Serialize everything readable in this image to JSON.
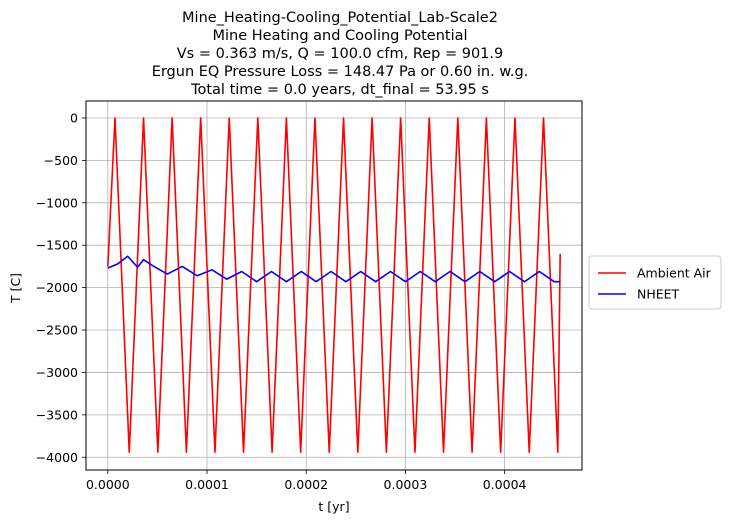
{
  "chart_data": {
    "type": "line",
    "title_lines": [
      "Mine_Heating-Cooling_Potential_Lab-Scale2",
      "Mine Heating and Cooling Potential",
      "Vs = 0.363 m/s, Q = 100.0 cfm, Rep = 901.9",
      "Ergun EQ Pressure Loss = 148.47 Pa or 0.60 in. w.g.",
      "Total time = 0.0 years, dt_final = 53.95 s"
    ],
    "xlabel": "t [yr]",
    "ylabel": "T [C]",
    "xlim": [
      -2.2e-05,
      0.000478
    ],
    "ylim": [
      -4150,
      200
    ],
    "xticks": [
      0.0,
      0.0001,
      0.0002,
      0.0003,
      0.0004
    ],
    "xtick_labels": [
      "0.0000",
      "0.0001",
      "0.0002",
      "0.0003",
      "0.0004"
    ],
    "yticks": [
      0,
      -500,
      -1000,
      -1500,
      -2000,
      -2500,
      -3000,
      -3500,
      -4000
    ],
    "ytick_labels": [
      "0",
      "−500",
      "−1000",
      "−1500",
      "−2000",
      "−2500",
      "−3000",
      "−3500",
      "−4000"
    ],
    "grid": true,
    "legend_position": "outside-right",
    "series": [
      {
        "name": "Ambient Air",
        "color": "#ff0000",
        "x": [
          0.0,
          7.2e-06,
          2.16e-05,
          3.6e-05,
          5.04e-05,
          6.48e-05,
          7.92e-05,
          9.36e-05,
          0.000108,
          0.0001224,
          0.0001368,
          0.0001512,
          0.0001656,
          0.00018,
          0.0001944,
          0.0002088,
          0.0002232,
          0.0002376,
          0.000252,
          0.0002664,
          0.0002808,
          0.0002952,
          0.0003096,
          0.000324,
          0.0003384,
          0.0003528,
          0.0003672,
          0.0003816,
          0.000396,
          0.0004104,
          0.0004248,
          0.0004392,
          0.0004536,
          0.000456
        ],
        "y": [
          -1750,
          0,
          -3940,
          0,
          -3940,
          0,
          -3940,
          0,
          -3940,
          0,
          -3940,
          0,
          -3940,
          0,
          -3940,
          0,
          -3940,
          0,
          -3940,
          0,
          -3940,
          0,
          -3940,
          0,
          -3940,
          0,
          -3940,
          0,
          -3940,
          0,
          -3940,
          0,
          -3940,
          -1600
        ]
      },
      {
        "name": "NHEET",
        "color": "#0000ff",
        "x": [
          0.0,
          1e-05,
          2e-05,
          3e-05,
          3.6e-05,
          4.5e-05,
          6e-05,
          7.5e-05,
          9e-05,
          0.000105,
          0.00012,
          0.000135,
          0.00015,
          0.000165,
          0.00018,
          0.000195,
          0.00021,
          0.000225,
          0.00024,
          0.000255,
          0.00027,
          0.000285,
          0.0003,
          0.000315,
          0.00033,
          0.000345,
          0.00036,
          0.000375,
          0.00039,
          0.000405,
          0.00042,
          0.000435,
          0.00045,
          0.000456
        ],
        "y": [
          -1770,
          -1720,
          -1630,
          -1760,
          -1670,
          -1740,
          -1840,
          -1750,
          -1860,
          -1790,
          -1900,
          -1810,
          -1930,
          -1810,
          -1930,
          -1810,
          -1930,
          -1810,
          -1930,
          -1810,
          -1930,
          -1810,
          -1930,
          -1810,
          -1930,
          -1810,
          -1930,
          -1810,
          -1930,
          -1810,
          -1930,
          -1810,
          -1930,
          -1930
        ]
      }
    ]
  }
}
